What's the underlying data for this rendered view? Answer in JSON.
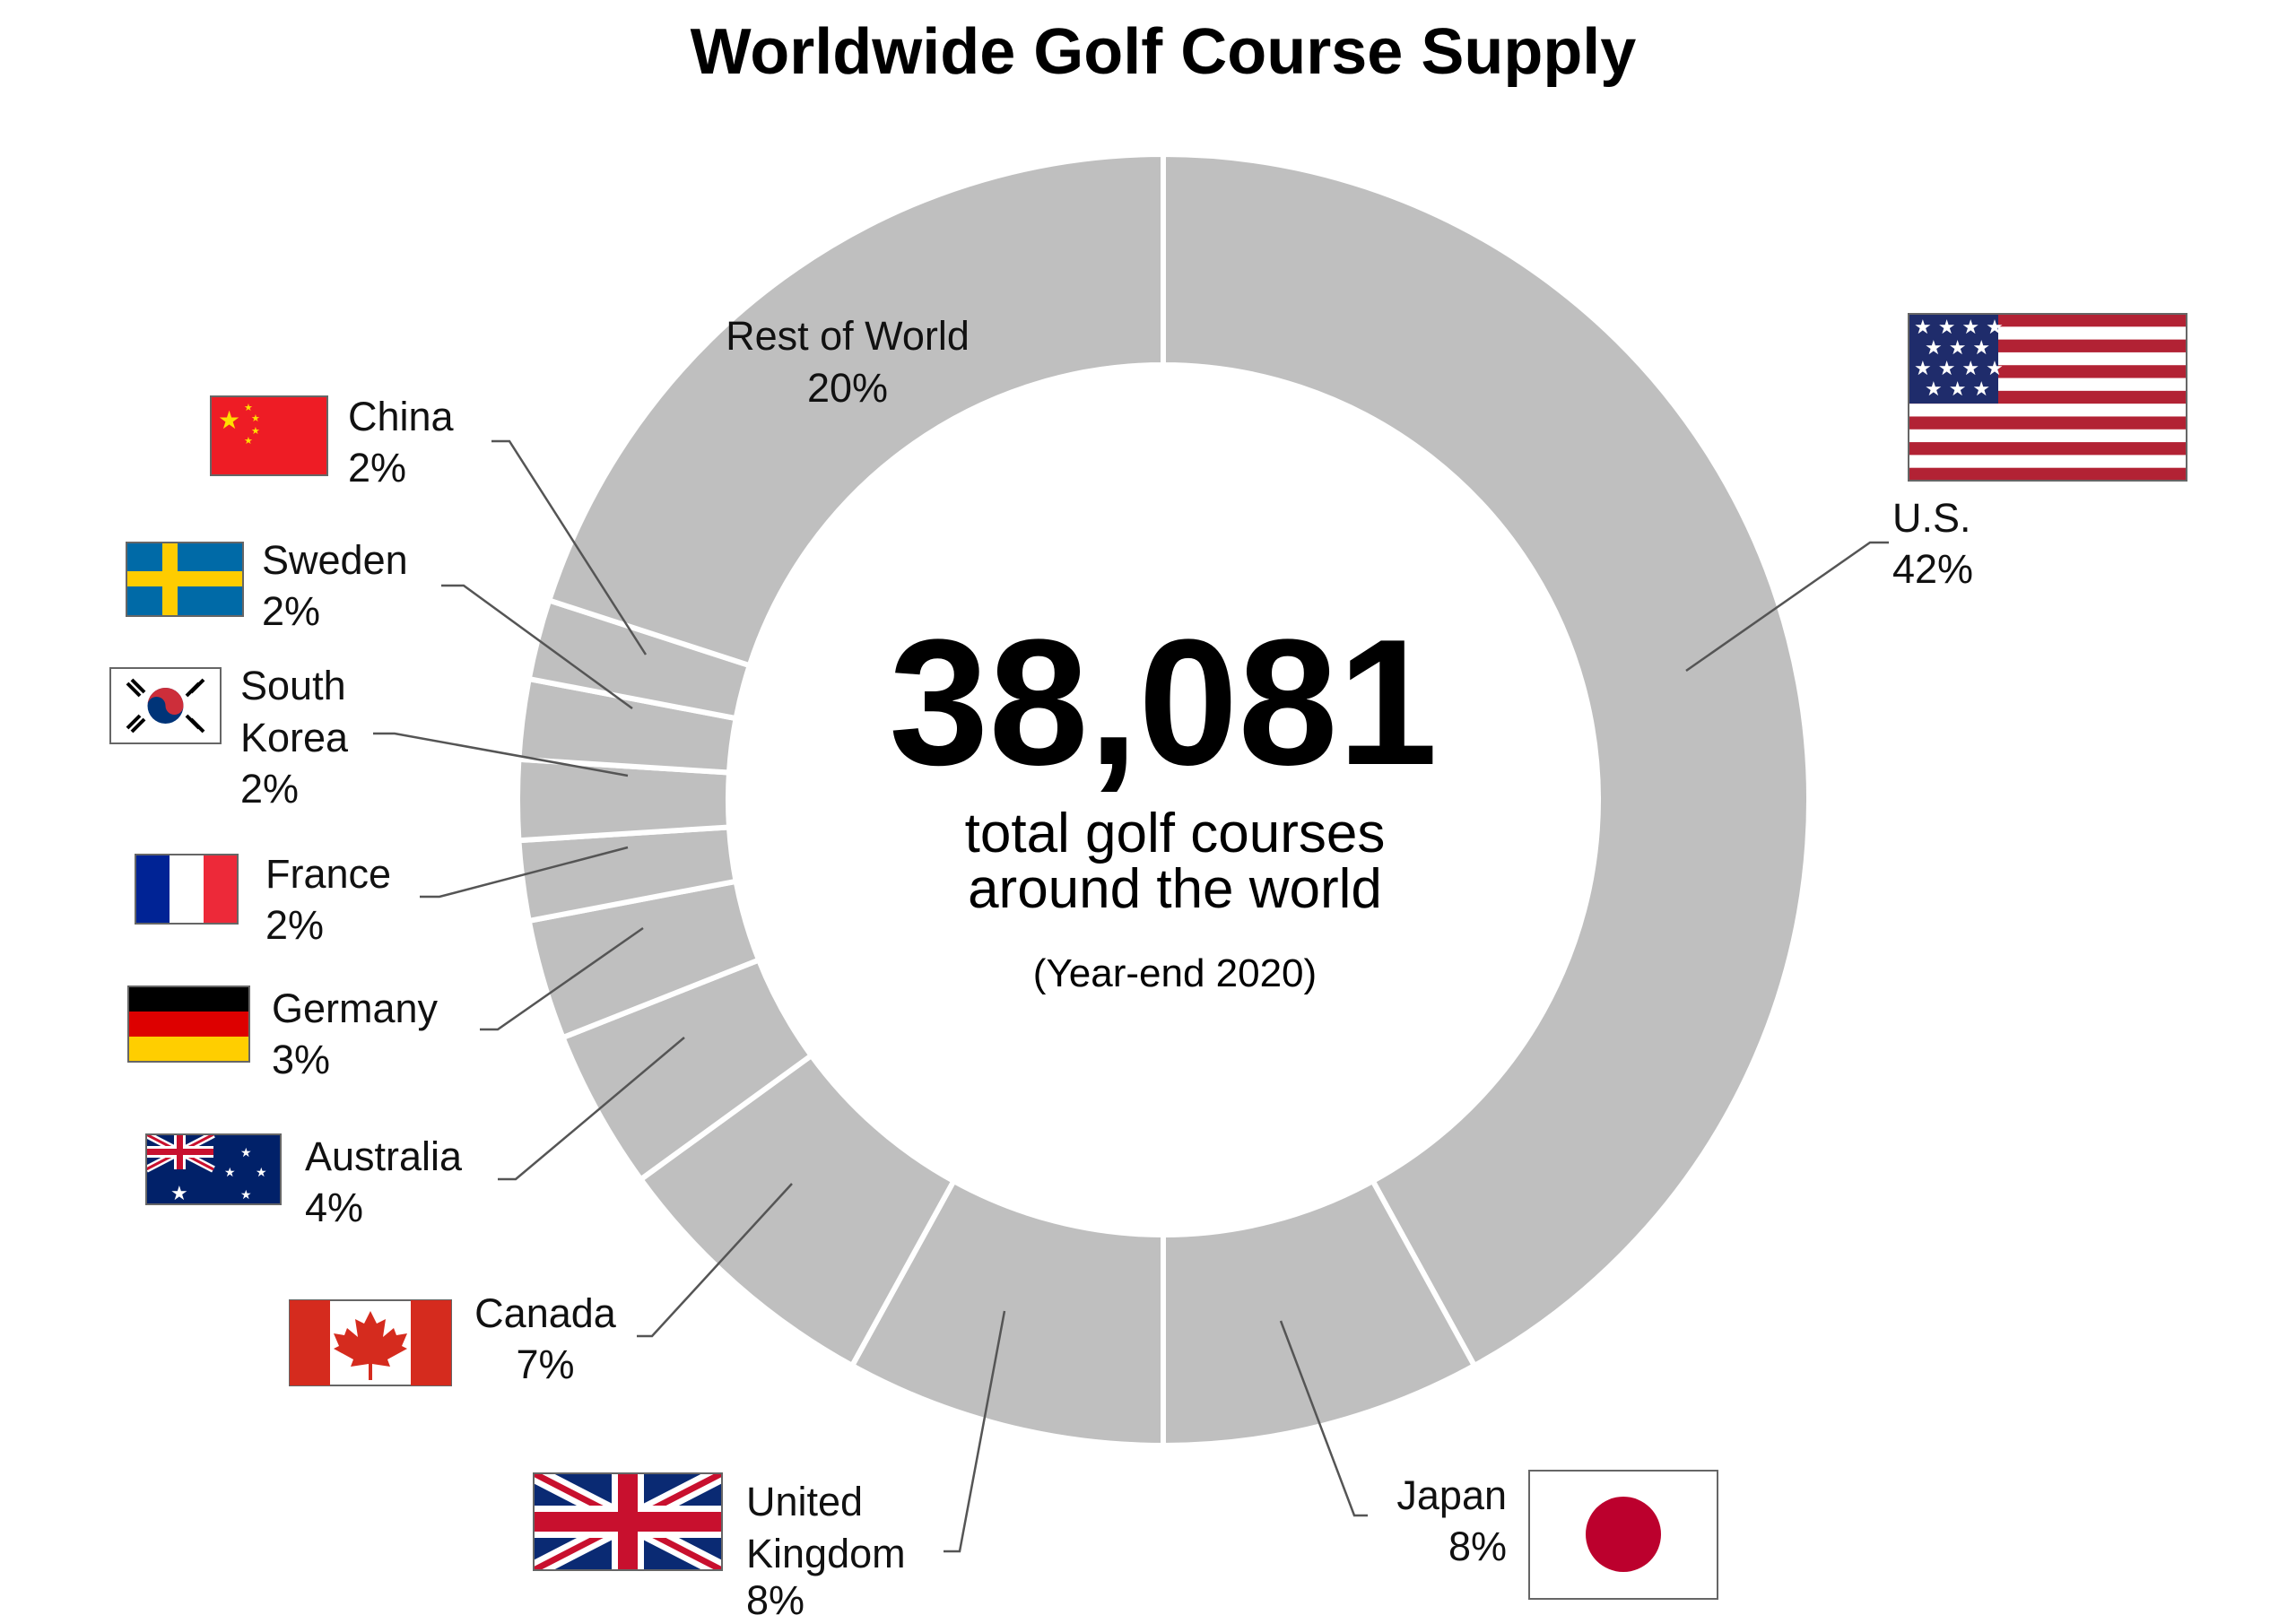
{
  "chart_data": {
    "type": "pie",
    "title": "Worldwide Golf Course Supply",
    "center_value": "38,081",
    "center_caption": [
      "total golf courses",
      "around the world"
    ],
    "center_note": "(Year-end 2020)",
    "slices": [
      {
        "id": "us",
        "name": "U.S.",
        "value": 42,
        "label": "42%"
      },
      {
        "id": "japan",
        "name": "Japan",
        "value": 8,
        "label": "8%"
      },
      {
        "id": "uk",
        "name": "United Kingdom",
        "value": 8,
        "label": "8%"
      },
      {
        "id": "canada",
        "name": "Canada",
        "value": 7,
        "label": "7%"
      },
      {
        "id": "australia",
        "name": "Australia",
        "value": 4,
        "label": "4%"
      },
      {
        "id": "germany",
        "name": "Germany",
        "value": 3,
        "label": "3%"
      },
      {
        "id": "france",
        "name": "France",
        "value": 2,
        "label": "2%"
      },
      {
        "id": "south_korea",
        "name": "South Korea",
        "value": 2,
        "label": "2%"
      },
      {
        "id": "sweden",
        "name": "Sweden",
        "value": 2,
        "label": "2%"
      },
      {
        "id": "china",
        "name": "China",
        "value": 2,
        "label": "2%"
      },
      {
        "id": "rest",
        "name": "Rest of World",
        "value": 20,
        "label": "20%"
      }
    ],
    "colors": {
      "slice": "#bfbfbf",
      "separator": "#ffffff"
    }
  },
  "flags": {
    "us": "us-flag-icon",
    "japan": "japan-flag-icon",
    "uk": "uk-flag-icon",
    "canada": "canada-flag-icon",
    "australia": "australia-flag-icon",
    "germany": "germany-flag-icon",
    "france": "france-flag-icon",
    "south_korea": "south-korea-flag-icon",
    "sweden": "sweden-flag-icon",
    "china": "china-flag-icon"
  }
}
